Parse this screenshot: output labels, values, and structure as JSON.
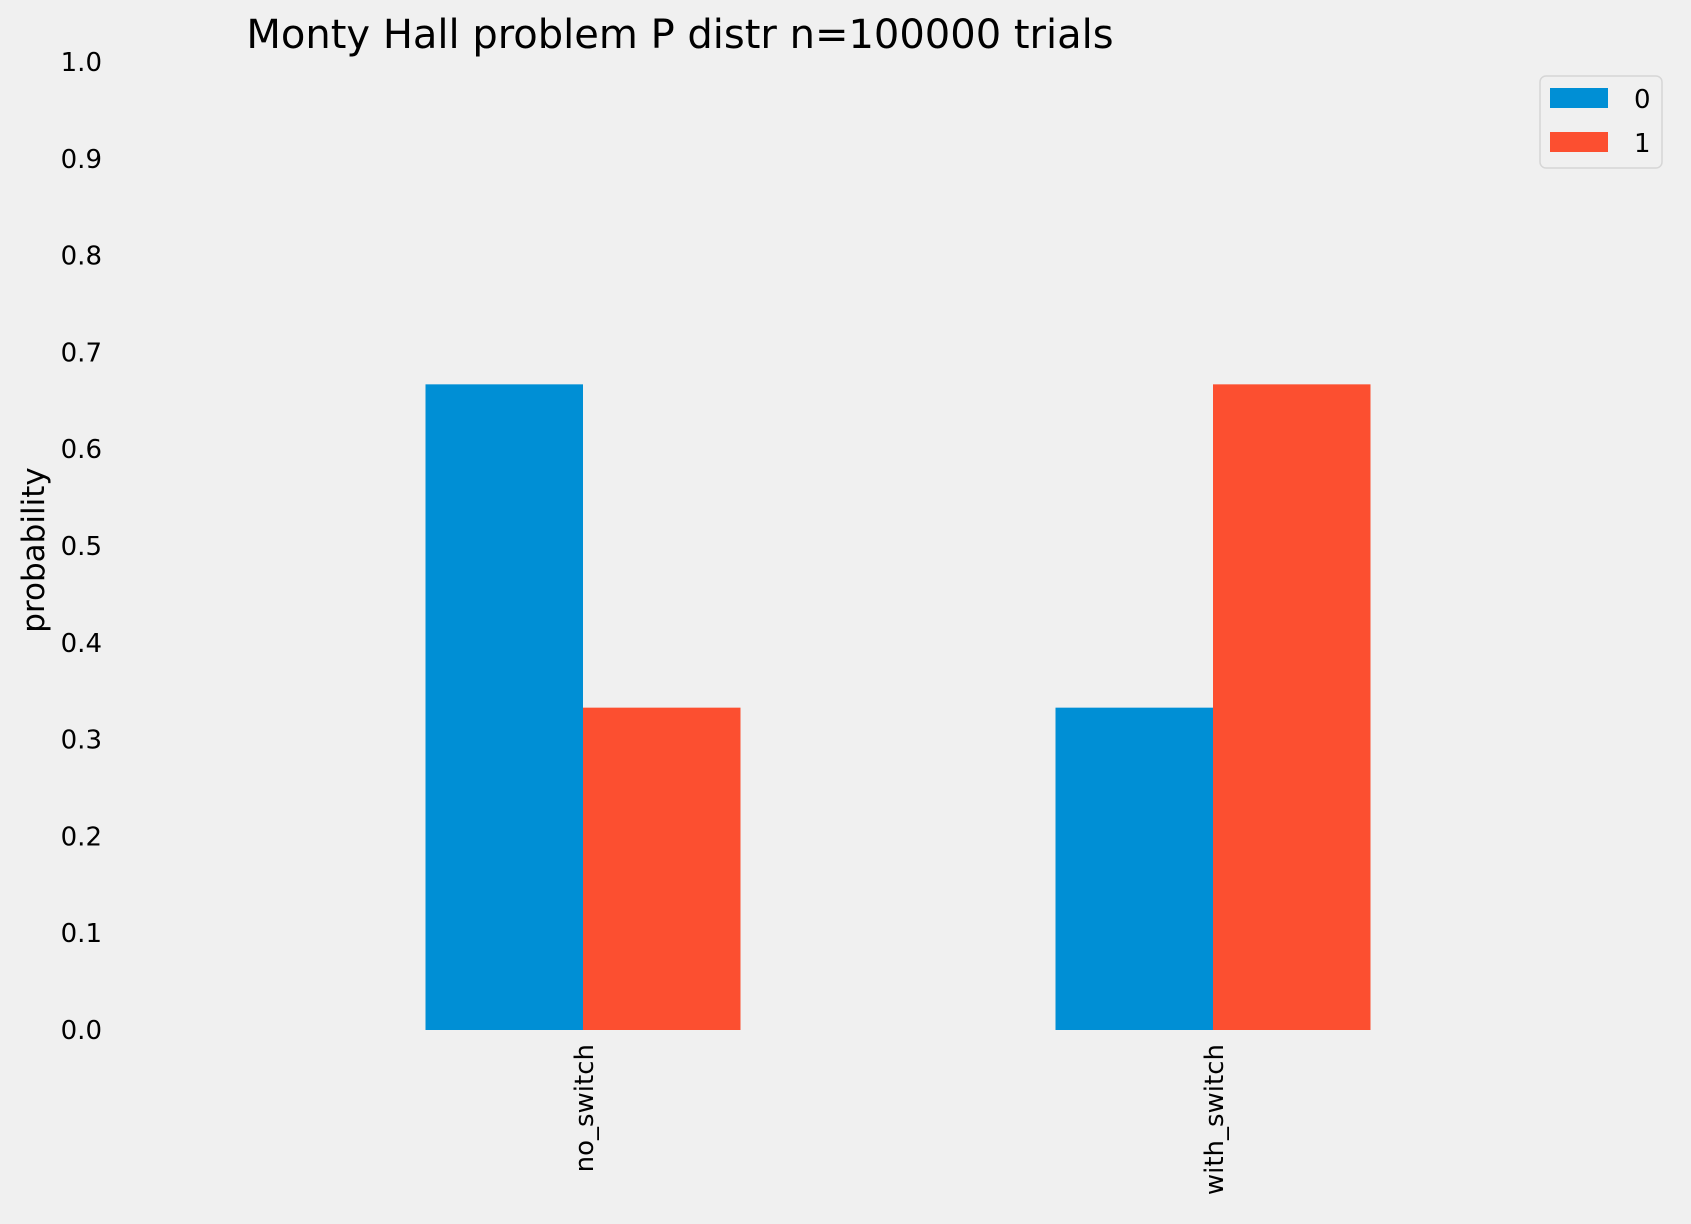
{
  "chart_data": {
    "type": "bar",
    "title": "Monty Hall problem P distr n=100000 trials",
    "xlabel": "",
    "ylabel": "probability",
    "categories": [
      "no_switch",
      "with_switch"
    ],
    "series": [
      {
        "name": "0",
        "values": [
          0.667,
          0.333
        ],
        "color": "#008fd5"
      },
      {
        "name": "1",
        "values": [
          0.333,
          0.667
        ],
        "color": "#fc4f30"
      }
    ],
    "ylim": [
      0,
      1.0
    ],
    "yticks": [
      "0.0",
      "0.1",
      "0.2",
      "0.3",
      "0.4",
      "0.5",
      "0.6",
      "0.7",
      "0.8",
      "0.9",
      "1.0"
    ],
    "grid": false,
    "legend_position": "top-right",
    "background_color": "#f0f0f0"
  }
}
